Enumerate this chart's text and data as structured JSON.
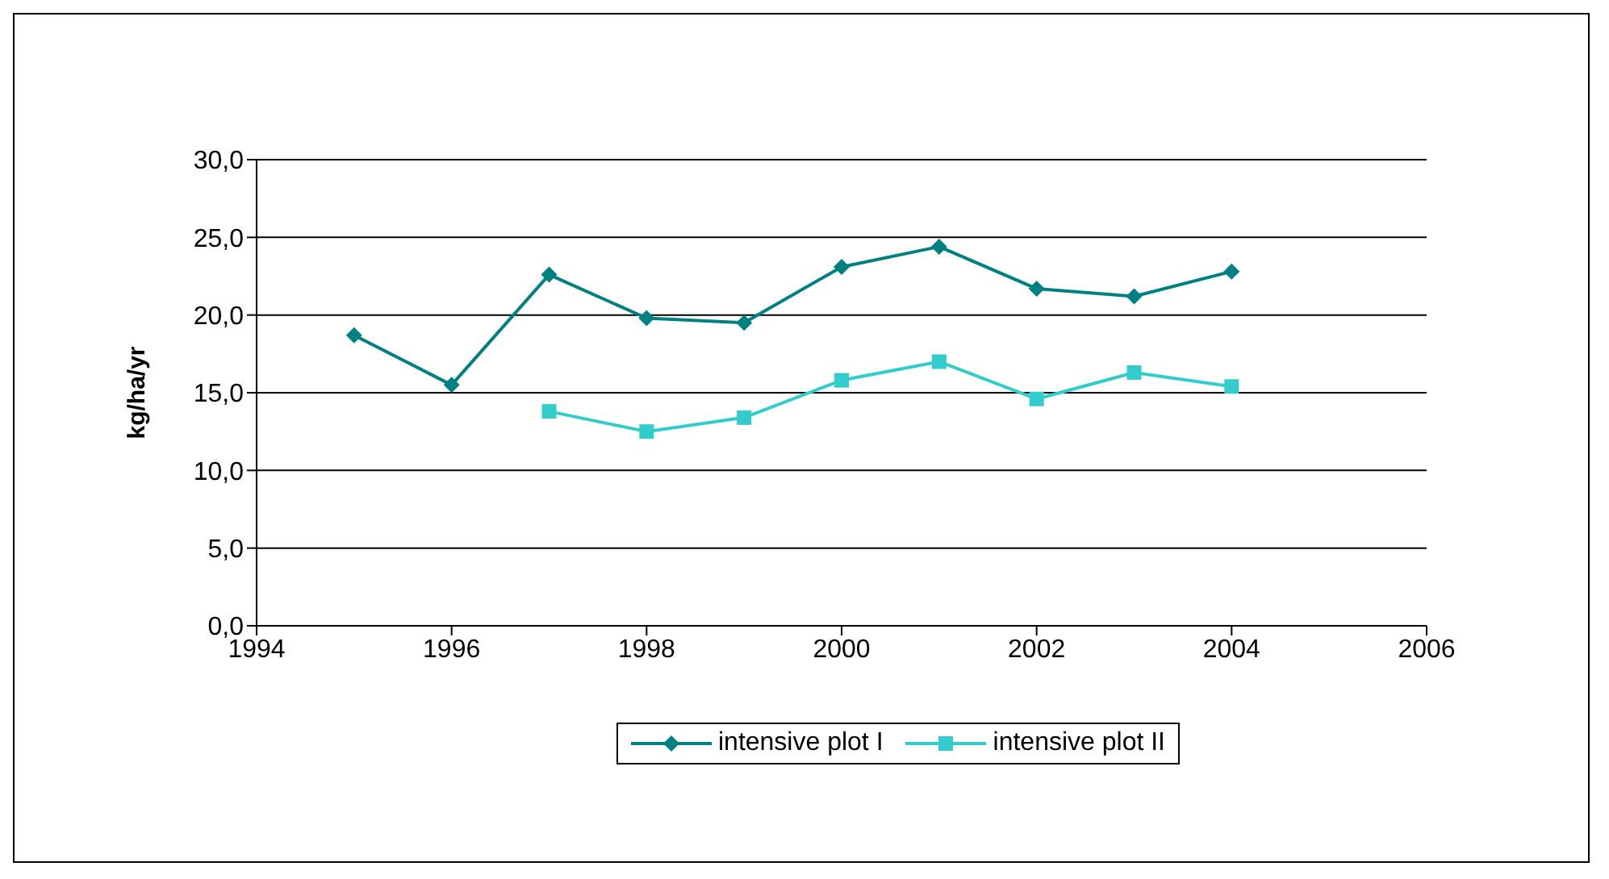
{
  "chart_data": {
    "type": "line",
    "ylabel": "kg/ha/yr",
    "series": [
      {
        "name": "intensive plot I",
        "color": "#008080",
        "marker": "diamond",
        "x": [
          1995,
          1996,
          1997,
          1998,
          1999,
          2000,
          2001,
          2002,
          2003,
          2004
        ],
        "values": [
          18.7,
          15.5,
          22.6,
          19.8,
          19.5,
          23.1,
          24.4,
          21.7,
          21.2,
          22.8
        ]
      },
      {
        "name": "intensive plot II",
        "color": "#33cccc",
        "marker": "square",
        "x": [
          1997,
          1998,
          1999,
          2000,
          2001,
          2002,
          2003,
          2004
        ],
        "values": [
          13.8,
          12.5,
          13.4,
          15.8,
          17.0,
          14.6,
          16.3,
          15.4
        ]
      }
    ],
    "xlim": [
      1994,
      2006
    ],
    "xticks": [
      1994,
      1996,
      1998,
      2000,
      2002,
      2004,
      2006
    ],
    "ylim": [
      0,
      30
    ],
    "yticks": [
      {
        "value": 0,
        "label": "0,0"
      },
      {
        "value": 5,
        "label": "5,0"
      },
      {
        "value": 10,
        "label": "10,0"
      },
      {
        "value": 15,
        "label": "15,0"
      },
      {
        "value": 20,
        "label": "20,0"
      },
      {
        "value": 25,
        "label": "25,0"
      },
      {
        "value": 30,
        "label": "30,0"
      }
    ],
    "grid": "y",
    "legend": "bottom"
  }
}
